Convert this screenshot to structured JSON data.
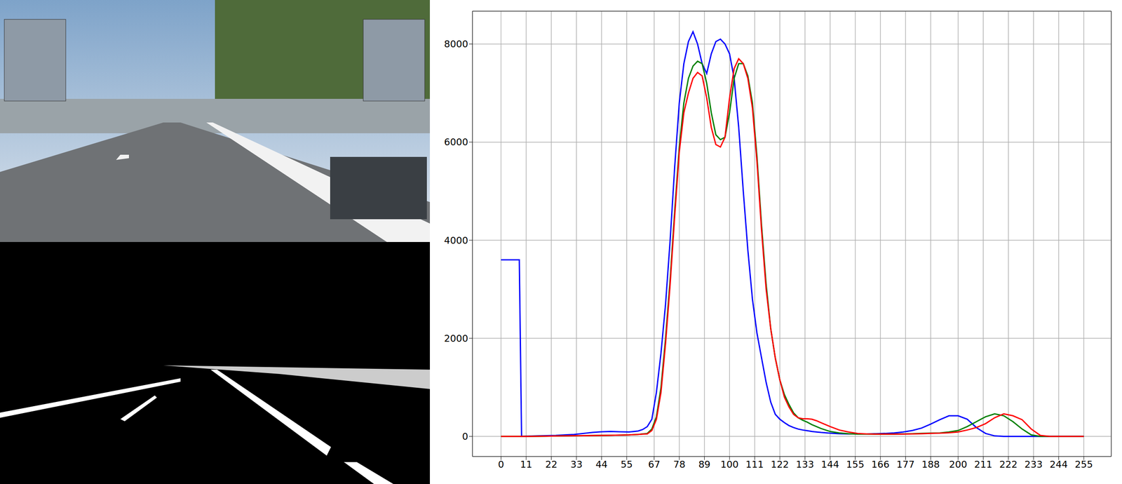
{
  "chart_data": {
    "type": "line",
    "x": [
      0,
      4,
      8,
      9,
      12,
      16,
      20,
      24,
      28,
      32,
      36,
      40,
      44,
      48,
      52,
      56,
      60,
      62,
      64,
      66,
      68,
      70,
      72,
      74,
      76,
      78,
      80,
      82,
      84,
      86,
      88,
      90,
      92,
      94,
      96,
      98,
      100,
      102,
      104,
      106,
      108,
      110,
      112,
      114,
      116,
      118,
      120,
      122,
      124,
      126,
      128,
      130,
      132,
      134,
      136,
      138,
      140,
      144,
      148,
      152,
      156,
      160,
      164,
      168,
      172,
      176,
      180,
      184,
      188,
      192,
      196,
      200,
      204,
      208,
      212,
      216,
      220,
      224,
      228,
      232,
      236,
      240,
      244,
      248,
      252,
      255
    ],
    "series": [
      {
        "color": "#0000ff",
        "values": [
          3600,
          3600,
          3600,
          0,
          5,
          10,
          15,
          20,
          30,
          40,
          60,
          80,
          95,
          100,
          95,
          90,
          110,
          140,
          200,
          350,
          900,
          1700,
          2700,
          4000,
          5500,
          6800,
          7600,
          8050,
          8250,
          8000,
          7600,
          7400,
          7800,
          8050,
          8100,
          8000,
          7800,
          7300,
          6300,
          5000,
          3800,
          2800,
          2100,
          1600,
          1100,
          700,
          450,
          350,
          280,
          220,
          180,
          150,
          130,
          115,
          100,
          90,
          80,
          65,
          55,
          50,
          50,
          50,
          55,
          60,
          70,
          90,
          120,
          170,
          250,
          340,
          420,
          420,
          350,
          180,
          60,
          10,
          0,
          0,
          0,
          0,
          0,
          0,
          0,
          0,
          0,
          0
        ]
      },
      {
        "color": "#008000",
        "values": [
          0,
          0,
          0,
          0,
          0,
          2,
          5,
          8,
          10,
          12,
          15,
          18,
          20,
          22,
          25,
          30,
          40,
          50,
          60,
          150,
          400,
          1000,
          2000,
          3200,
          4600,
          5900,
          6800,
          7300,
          7550,
          7650,
          7600,
          7200,
          6600,
          6150,
          6050,
          6100,
          6600,
          7300,
          7600,
          7600,
          7350,
          6800,
          5700,
          4300,
          3100,
          2200,
          1600,
          1150,
          850,
          650,
          480,
          380,
          330,
          290,
          240,
          200,
          160,
          100,
          70,
          55,
          45,
          45,
          45,
          45,
          45,
          50,
          55,
          60,
          65,
          70,
          90,
          120,
          200,
          300,
          400,
          460,
          420,
          300,
          150,
          30,
          0,
          0,
          0,
          0,
          0,
          0
        ]
      },
      {
        "color": "#ff0000",
        "values": [
          0,
          0,
          0,
          0,
          0,
          2,
          5,
          8,
          10,
          12,
          15,
          18,
          20,
          22,
          25,
          30,
          40,
          45,
          50,
          120,
          350,
          900,
          1900,
          3100,
          4500,
          5800,
          6600,
          7000,
          7300,
          7420,
          7350,
          6900,
          6300,
          5950,
          5900,
          6100,
          6900,
          7500,
          7700,
          7600,
          7300,
          6700,
          5600,
          4200,
          3000,
          2200,
          1600,
          1150,
          800,
          600,
          450,
          380,
          360,
          360,
          350,
          320,
          280,
          200,
          130,
          90,
          60,
          50,
          45,
          45,
          45,
          45,
          50,
          55,
          60,
          65,
          75,
          90,
          130,
          180,
          260,
          380,
          460,
          420,
          340,
          150,
          20,
          0,
          0,
          0,
          0,
          0
        ]
      }
    ],
    "xlim": [
      -12.5,
      267
    ],
    "ylim": [
      -410,
      8670
    ],
    "xticks": [
      0,
      11,
      22,
      33,
      44,
      55,
      67,
      78,
      89,
      100,
      111,
      122,
      133,
      144,
      155,
      166,
      177,
      188,
      200,
      211,
      222,
      233,
      244,
      255
    ],
    "yticks": [
      0,
      2000,
      4000,
      6000,
      8000
    ],
    "grid": true
  }
}
